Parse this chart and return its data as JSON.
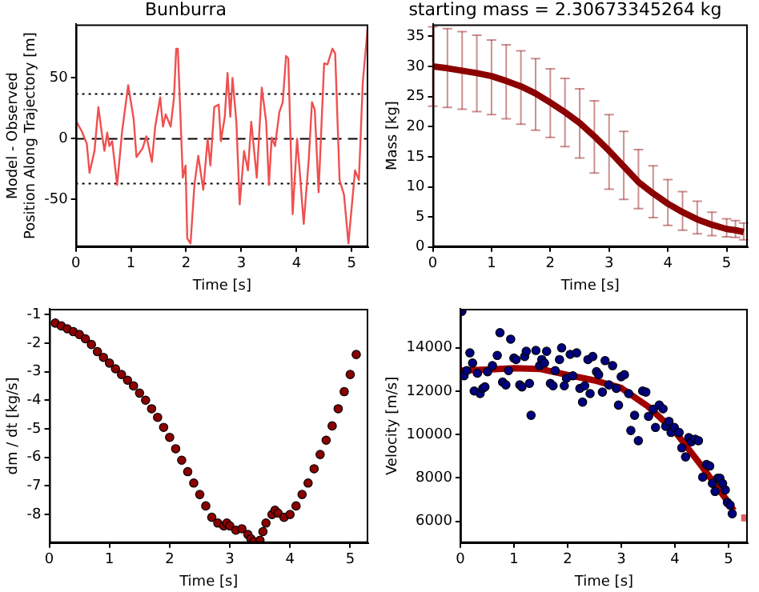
{
  "chart_data": [
    {
      "type": "line",
      "title": "Bunburra",
      "xlabel": "Time [s]",
      "ylabel": "Model - Observed\nPosition Along Trajectory [m]",
      "xlim": [
        0,
        5.3
      ],
      "xticks": [
        0,
        1,
        2,
        3,
        4,
        5
      ],
      "ylim": [
        -89,
        94
      ],
      "yticks": [
        -50,
        0,
        50
      ],
      "ref_lines": [
        {
          "axis": "y",
          "value": 0,
          "line_style": "dashed",
          "color": "#000000"
        },
        {
          "axis": "y",
          "value": 36.8,
          "line_style": "dotted",
          "color": "#000000"
        },
        {
          "axis": "y",
          "value": -36.8,
          "line_style": "dotted",
          "color": "#000000"
        }
      ],
      "series": [
        {
          "color": "#f05050",
          "x": [
            0,
            0.11,
            0.2,
            0.25,
            0.34,
            0.41,
            0.48,
            0.52,
            0.57,
            0.61,
            0.66,
            0.75,
            0.84,
            0.95,
            1.05,
            1.1,
            1.21,
            1.28,
            1.38,
            1.44,
            1.53,
            1.58,
            1.63,
            1.72,
            1.78,
            1.82,
            1.85,
            1.94,
            1.99,
            2.02,
            2.08,
            2.15,
            2.22,
            2.31,
            2.39,
            2.44,
            2.51,
            2.59,
            2.63,
            2.7,
            2.75,
            2.8,
            2.84,
            2.91,
            2.97,
            3.05,
            3.12,
            3.18,
            3.28,
            3.37,
            3.45,
            3.5,
            3.55,
            3.61,
            3.69,
            3.75,
            3.81,
            3.85,
            3.93,
            4.01,
            4.06,
            4.13,
            4.22,
            4.28,
            4.33,
            4.4,
            4.5,
            4.56,
            4.65,
            4.7,
            4.78,
            4.86,
            4.94,
            5.06,
            5.13,
            5.2,
            5.29
          ],
          "values": [
            15,
            6,
            -4,
            -28,
            -10,
            26,
            2,
            -10,
            5,
            -6,
            -2,
            -38,
            6,
            44,
            16,
            -15,
            -8,
            2,
            -19,
            10,
            34,
            10,
            20,
            10,
            34,
            74,
            74,
            -32,
            -22,
            -82,
            -86,
            -38,
            -14,
            -42,
            0,
            -22,
            26,
            28,
            -2,
            18,
            54,
            18,
            50,
            14,
            -54,
            -10,
            -26,
            14,
            -32,
            42,
            14,
            -38,
            1,
            -6,
            22,
            30,
            68,
            66,
            -62,
            0,
            -28,
            -70,
            -18,
            30,
            24,
            -44,
            62,
            61,
            74,
            70,
            -34,
            -46,
            -86,
            -26,
            -34,
            46,
            92
          ]
        }
      ]
    },
    {
      "type": "line",
      "title": "starting mass = 2.30673345264 kg",
      "xlabel": "Time [s]",
      "ylabel": "Mass [kg]",
      "xlim": [
        0,
        5.36
      ],
      "xticks": [
        0,
        1,
        2,
        3,
        4,
        5
      ],
      "ylim": [
        0,
        37
      ],
      "yticks": [
        0,
        5,
        10,
        15,
        20,
        25,
        30,
        35
      ],
      "series": [
        {
          "color": "#8b0000",
          "x": [
            0,
            0.25,
            0.5,
            0.75,
            1,
            1.25,
            1.5,
            1.75,
            2,
            2.25,
            2.5,
            2.75,
            3,
            3.25,
            3.5,
            3.75,
            4,
            4.25,
            4.5,
            4.75,
            5,
            5.15,
            5.29
          ],
          "values": [
            30,
            29.7,
            29.3,
            28.9,
            28.4,
            27.6,
            26.7,
            25.5,
            24,
            22.4,
            20.6,
            18.4,
            16,
            13.4,
            10.8,
            8.9,
            7.2,
            5.8,
            4.6,
            3.7,
            3,
            2.8,
            2.5
          ],
          "errors": [
            [
              23.4,
              36.6
            ],
            [
              23.2,
              36.3
            ],
            [
              22.9,
              35.8
            ],
            [
              22.5,
              35.2
            ],
            [
              22,
              34.4
            ],
            [
              21.3,
              33.6
            ],
            [
              20.4,
              32.6
            ],
            [
              19.4,
              31.3
            ],
            [
              18.2,
              29.6
            ],
            [
              16.7,
              28
            ],
            [
              14.8,
              26.3
            ],
            [
              12.3,
              24.3
            ],
            [
              9.6,
              22
            ],
            [
              7.9,
              19.2
            ],
            [
              6.4,
              16.2
            ],
            [
              4.9,
              13.5
            ],
            [
              3.6,
              11.2
            ],
            [
              2.8,
              9.2
            ],
            [
              2.2,
              7.6
            ],
            [
              1.9,
              5.8
            ],
            [
              1.7,
              4.7
            ],
            [
              1.6,
              4.4
            ],
            [
              1.2,
              4
            ]
          ]
        }
      ]
    },
    {
      "type": "scatter",
      "marker": "circle",
      "xlabel": "Time [s]",
      "ylabel": "dm / dt [kg/s]",
      "xlim": [
        0,
        5.3
      ],
      "xticks": [
        0,
        1,
        2,
        3,
        4,
        5
      ],
      "ylim": [
        -9,
        -0.8
      ],
      "yticks": [
        -8,
        -7,
        -6,
        -5,
        -4,
        -3,
        -2,
        -1
      ],
      "series": [
        {
          "color": "#8b0000",
          "x": [
            0.1,
            0.2,
            0.3,
            0.4,
            0.5,
            0.6,
            0.7,
            0.8,
            0.9,
            1,
            1.1,
            1.2,
            1.3,
            1.4,
            1.5,
            1.6,
            1.7,
            1.8,
            1.9,
            2,
            2.1,
            2.2,
            2.3,
            2.4,
            2.5,
            2.6,
            2.7,
            2.8,
            2.9,
            2.95,
            3,
            3.1,
            3.2,
            3.3,
            3.35,
            3.4,
            3.5,
            3.55,
            3.6,
            3.7,
            3.75,
            3.8,
            3.9,
            4,
            4.1,
            4.2,
            4.3,
            4.4,
            4.5,
            4.6,
            4.7,
            4.8,
            4.9,
            5,
            5.1
          ],
          "values": [
            -1.3,
            -1.4,
            -1.5,
            -1.6,
            -1.7,
            -1.85,
            -2.05,
            -2.3,
            -2.5,
            -2.7,
            -2.9,
            -3.1,
            -3.3,
            -3.5,
            -3.75,
            -4,
            -4.3,
            -4.6,
            -4.95,
            -5.3,
            -5.7,
            -6.1,
            -6.5,
            -6.9,
            -7.3,
            -7.7,
            -8.1,
            -8.3,
            -8.4,
            -8.3,
            -8.4,
            -8.55,
            -8.5,
            -8.7,
            -8.85,
            -8.95,
            -8.9,
            -8.6,
            -8.3,
            -8,
            -7.85,
            -7.95,
            -8.1,
            -8,
            -7.7,
            -7.3,
            -6.9,
            -6.4,
            -5.9,
            -5.4,
            -4.9,
            -4.3,
            -3.7,
            -3.1,
            -2.4
          ]
        }
      ]
    },
    {
      "type": "scatter",
      "marker": "circle",
      "xlabel": "Time [s]",
      "ylabel": "Velocity [m/s]",
      "xlim": [
        0,
        5.36
      ],
      "xticks": [
        0,
        1,
        2,
        3,
        4,
        5
      ],
      "ylim": [
        5000,
        15800
      ],
      "yticks": [
        6000,
        8000,
        10000,
        12000,
        14000
      ],
      "series": [
        {
          "color": "#000080",
          "x": [
            0.03,
            0.07,
            0.12,
            0.18,
            0.23,
            0.26,
            0.32,
            0.37,
            0.42,
            0.46,
            0.51,
            0.6,
            0.69,
            0.74,
            0.79,
            0.85,
            0.9,
            0.94,
            1,
            1.04,
            1.11,
            1.15,
            1.2,
            1.23,
            1.29,
            1.32,
            1.41,
            1.48,
            1.52,
            1.57,
            1.61,
            1.68,
            1.73,
            1.77,
            1.85,
            1.89,
            1.94,
            1.98,
            2.05,
            2.1,
            2.17,
            2.23,
            2.28,
            2.32,
            2.38,
            2.42,
            2.47,
            2.54,
            2.58,
            2.65,
            2.7,
            2.77,
            2.84,
            2.91,
            2.95,
            3,
            3.06,
            3.14,
            3.18,
            3.25,
            3.32,
            3.4,
            3.46,
            3.51,
            3.6,
            3.64,
            3.71,
            3.78,
            3.83,
            3.89,
            3.93,
            3.99,
            4.08,
            4.13,
            4.2,
            4.26,
            4.31,
            4.38,
            4.44,
            4.52,
            4.59,
            4.65,
            4.7,
            4.75,
            4.8,
            4.84,
            4.89,
            4.94,
            4.98,
            5.03,
            5.07
          ],
          "values": [
            15680,
            12710,
            12950,
            13770,
            13300,
            12010,
            12830,
            11890,
            12130,
            12200,
            12900,
            13180,
            13650,
            14700,
            12420,
            12290,
            12950,
            14400,
            13530,
            13460,
            12290,
            12200,
            13600,
            13840,
            12360,
            10890,
            13880,
            13180,
            13460,
            13300,
            13840,
            12360,
            12250,
            12950,
            13460,
            14000,
            12250,
            12600,
            13700,
            12710,
            13770,
            12130,
            11500,
            12250,
            13460,
            11890,
            13600,
            12900,
            12760,
            11960,
            13410,
            12290,
            13180,
            12130,
            11360,
            12670,
            12760,
            11890,
            10190,
            10890,
            9720,
            12010,
            11960,
            10840,
            11170,
            10330,
            11360,
            11190,
            10380,
            10610,
            10100,
            10330,
            10100,
            9390,
            8970,
            9860,
            9670,
            9790,
            9720,
            8040,
            8620,
            8550,
            7750,
            7380,
            7990,
            7990,
            7750,
            7450,
            6870,
            6750,
            6350
          ]
        },
        {
          "type": "line",
          "marker": "none",
          "color": "#a00000",
          "x": [
            0,
            0.5,
            1,
            1.5,
            2,
            2.5,
            3,
            3.5,
            4,
            4.5,
            5,
            5.1
          ],
          "values": [
            12950,
            13000,
            13060,
            13020,
            12750,
            12500,
            12150,
            11300,
            10150,
            8550,
            6870,
            6500
          ]
        },
        {
          "type": "scatter",
          "marker": "square",
          "color": "#e06060",
          "x": [
            5.3
          ],
          "values": [
            6160
          ]
        }
      ]
    }
  ]
}
